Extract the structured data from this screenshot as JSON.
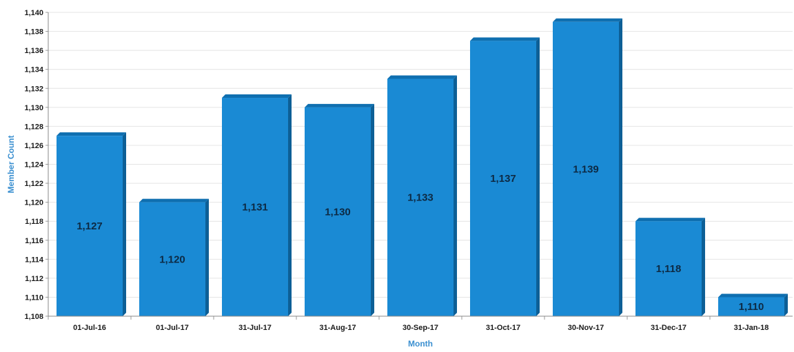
{
  "chart_data": {
    "type": "bar",
    "title": "",
    "xlabel": "Month",
    "ylabel": "Member Count",
    "categories": [
      "01-Jul-16",
      "01-Jul-17",
      "31-Jul-17",
      "31-Aug-17",
      "30-Sep-17",
      "31-Oct-17",
      "30-Nov-17",
      "31-Dec-17",
      "31-Jan-18"
    ],
    "values": [
      1127,
      1120,
      1131,
      1130,
      1133,
      1137,
      1139,
      1118,
      1110
    ],
    "data_labels": [
      "1,127",
      "1,120",
      "1,131",
      "1,130",
      "1,133",
      "1,137",
      "1,139",
      "1,118",
      "1,110"
    ],
    "ylim": [
      1108,
      1140
    ],
    "yticks": [
      1108,
      1110,
      1112,
      1114,
      1116,
      1118,
      1120,
      1122,
      1124,
      1126,
      1128,
      1130,
      1132,
      1134,
      1136,
      1138,
      1140
    ],
    "ytick_labels": [
      "1,108",
      "1,110",
      "1,112",
      "1,114",
      "1,116",
      "1,118",
      "1,120",
      "1,122",
      "1,124",
      "1,126",
      "1,128",
      "1,130",
      "1,132",
      "1,134",
      "1,136",
      "1,138",
      "1,140"
    ],
    "grid": true,
    "legend": "none",
    "colors": {
      "bar": "#1a8ad4",
      "bar_side": "#0d5f96",
      "bar_top": "#0f6fb0",
      "axis_title": "#3a8fd0",
      "grid": "#e4e4e4"
    }
  }
}
